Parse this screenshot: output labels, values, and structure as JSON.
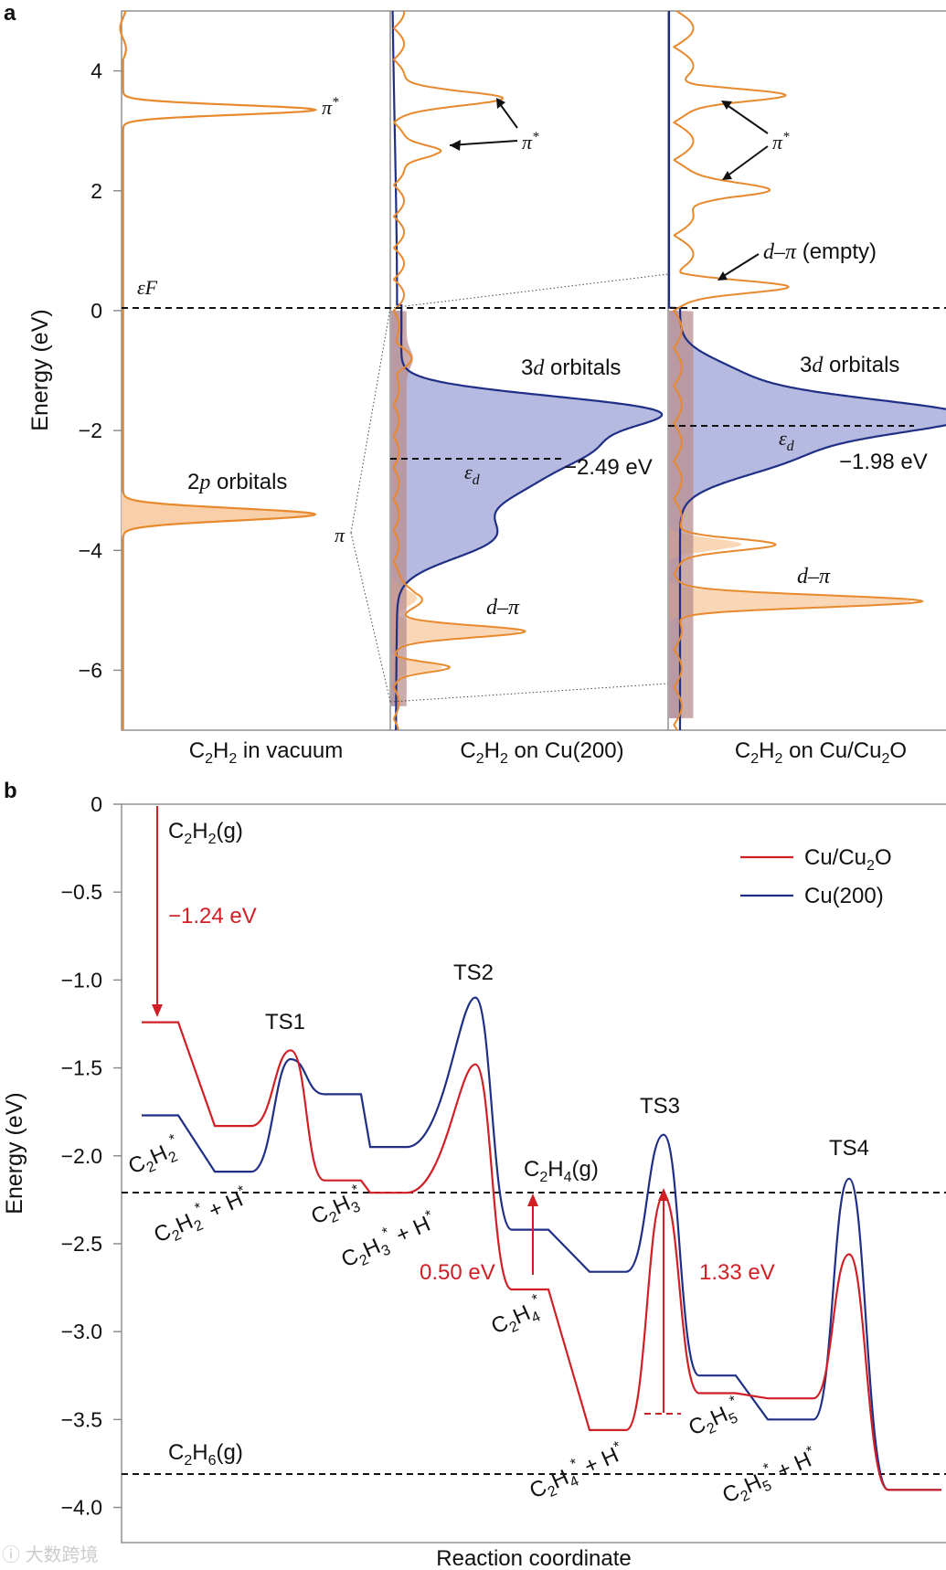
{
  "chart_data": [
    {
      "panel": "a",
      "type": "line",
      "ylabel": "Energy (eV)",
      "ylim": [
        -7,
        5
      ],
      "yticks": [
        "4",
        "2",
        "0",
        "−2",
        "−4",
        "−6"
      ],
      "ytick_values": [
        4,
        2,
        0,
        -2,
        -4,
        -6
      ],
      "subplots": [
        {
          "label": "C₂H₂ in vacuum",
          "orange_peaks": [
            {
              "e": 3.35,
              "amp": 1,
              "name": "π*"
            },
            {
              "e": -3.4,
              "amp": 1,
              "name": "π"
            }
          ],
          "annotations": {
            "pi_star": "π*",
            "pi": "π",
            "orbitals": "2p orbitals",
            "fermi": "εF"
          }
        },
        {
          "label": "C₂H₂ on Cu(200)",
          "d_band_center_ev": -2.49,
          "annotations": {
            "pi_star": "π*",
            "d_orbitals": "3d orbitals",
            "ed": "εd",
            "ed_value": "−2.49 eV",
            "d_pi": "d–π"
          }
        },
        {
          "label": "C₂H₂ on Cu/Cu₂O",
          "d_band_center_ev": -1.98,
          "annotations": {
            "pi_star": "π*",
            "d_pi_empty": "d–π (empty)",
            "d_orbitals": "3d orbitals",
            "ed": "εd",
            "ed_value": "−1.98 eV",
            "d_pi": "d–π"
          }
        }
      ]
    },
    {
      "panel": "b",
      "type": "line",
      "xlabel": "Reaction coordinate",
      "ylabel": "Energy (eV)",
      "ylim": [
        -4.2,
        0
      ],
      "yticks": [
        "0",
        "−0.5",
        "−1.0",
        "−1.5",
        "−2.0",
        "−2.5",
        "−3.0",
        "−3.5",
        "−4.0"
      ],
      "ytick_values": [
        0,
        -0.5,
        -1.0,
        -1.5,
        -2.0,
        -2.5,
        -3.0,
        -3.5,
        -4.0
      ],
      "legend": [
        "Cu/Cu₂O",
        "Cu(200)"
      ],
      "legend_position": "top-right",
      "series": [
        {
          "name": "Cu/Cu₂O",
          "color": "#d11f26",
          "states": [
            {
              "label": "C2H2*",
              "energy": -1.24
            },
            {
              "label": "C2H2* + H*",
              "energy": -1.83
            },
            {
              "label": "TS1",
              "energy": -1.4
            },
            {
              "label": "C2H3*",
              "energy": -2.14
            },
            {
              "label": "C2H3* + H*",
              "energy": -2.21
            },
            {
              "label": "TS2",
              "energy": -1.48
            },
            {
              "label": "C2H4*",
              "energy": -2.76
            },
            {
              "label": "C2H4* + H*",
              "energy": -3.56
            },
            {
              "label": "TS3",
              "energy": -2.23
            },
            {
              "label": "C2H5*",
              "energy": -3.35
            },
            {
              "label": "C2H5* + H*",
              "energy": -3.38
            },
            {
              "label": "TS4",
              "energy": -2.56
            },
            {
              "label": "C2H6(g)",
              "energy": -3.9
            }
          ]
        },
        {
          "name": "Cu(200)",
          "color": "#1f2f86",
          "states": [
            {
              "label": "C2H2*",
              "energy": -1.77
            },
            {
              "label": "C2H2* + H*",
              "energy": -2.09
            },
            {
              "label": "TS1",
              "energy": -1.45
            },
            {
              "label": "C2H3*",
              "energy": -1.65
            },
            {
              "label": "C2H3* + H*",
              "energy": -1.95
            },
            {
              "label": "TS2",
              "energy": -1.1
            },
            {
              "label": "C2H4*",
              "energy": -2.42
            },
            {
              "label": "C2H4* + H*",
              "energy": -2.66
            },
            {
              "label": "TS3",
              "energy": -1.88
            },
            {
              "label": "C2H5*",
              "energy": -3.25
            },
            {
              "label": "C2H5* + H*",
              "energy": -3.5
            },
            {
              "label": "TS4",
              "energy": -2.13
            },
            {
              "label": "C2H6(g)",
              "energy": -3.9
            }
          ]
        }
      ],
      "reference_lines": [
        {
          "name": "C₂H₄(g)",
          "energy": -2.26
        },
        {
          "name": "C₂H₆(g)",
          "energy": -3.9
        }
      ],
      "energy_annotations": [
        {
          "text": "−1.24 eV",
          "from": 0,
          "to": -1.24
        },
        {
          "text": "0.50 eV",
          "from": -2.76,
          "to": -2.26
        },
        {
          "text": "1.33 eV",
          "from": -3.56,
          "to": -2.23
        }
      ]
    }
  ],
  "text": {
    "panel_a": "a",
    "panel_b": "b",
    "a_ylabel": "Energy (eV)",
    "b_ylabel": "Energy (eV)",
    "b_xlabel": "Reaction coordinate",
    "legend_cu2o": "Cu/Cu₂O",
    "legend_cu200": "Cu(200)",
    "c2h2g": "C₂H₂(g)",
    "c2h4g": "C₂H₄(g)",
    "c2h6g": "C₂H₆(g)",
    "e124": "−1.24 eV",
    "e050": "0.50 eV",
    "e133": "1.33 eV",
    "ts1": "TS1",
    "ts2": "TS2",
    "ts3": "TS3",
    "ts4": "TS4",
    "watermark": "大数跨境"
  },
  "colors": {
    "orange": "#e8892e",
    "orange_fill": "#f8cfa8",
    "blue": "#1f2f86",
    "blue_fill": "#b6b9e0",
    "red": "#d11f26",
    "brown_fill": "#b98f8f"
  }
}
